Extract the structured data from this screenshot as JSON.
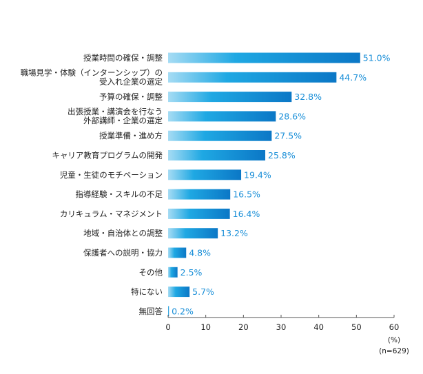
{
  "chart_data": {
    "type": "bar",
    "orientation": "horizontal",
    "categories": [
      [
        "授業時間の確保・調整"
      ],
      [
        "職場見学・体験（インターンシップ）の",
        "受入れ企業の選定"
      ],
      [
        "予算の確保・調整"
      ],
      [
        "出張授業・講演会を行なう",
        "外部講師・企業の選定"
      ],
      [
        "授業準備・進め方"
      ],
      [
        "キャリア教育プログラムの開発"
      ],
      [
        "児童・生徒のモチベーション"
      ],
      [
        "指導経験・スキルの不足"
      ],
      [
        "カリキュラム・マネジメント"
      ],
      [
        "地域・自治体との調整"
      ],
      [
        "保護者への説明・協力"
      ],
      [
        "その他"
      ],
      [
        "特にない"
      ],
      [
        "無回答"
      ]
    ],
    "values": [
      51.0,
      44.7,
      32.8,
      28.6,
      27.5,
      25.8,
      19.4,
      16.5,
      16.4,
      13.2,
      4.8,
      2.5,
      5.7,
      0.2
    ],
    "value_labels": [
      "51.0%",
      "44.7%",
      "32.8%",
      "28.6%",
      "27.5%",
      "25.8%",
      "19.4%",
      "16.5%",
      "16.4%",
      "13.2%",
      "4.8%",
      "2.5%",
      "5.7%",
      "0.2%"
    ],
    "xlim": [
      0,
      60
    ],
    "xticks": [
      0,
      10,
      20,
      30,
      40,
      50,
      60
    ],
    "unit_label": "(%)",
    "sample_note": "(n=629)",
    "grid": false,
    "colors": {
      "bar_light": "#a6dcf4",
      "bar_mid": "#1fa8e3",
      "bar_dark": "#0b77c6",
      "value_text": "#1a8fd8",
      "axis": "#555555"
    }
  }
}
